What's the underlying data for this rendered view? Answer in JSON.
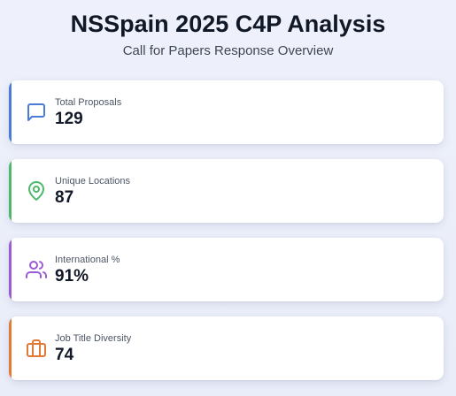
{
  "header": {
    "title": "NSSpain 2025 C4P Analysis",
    "subtitle": "Call for Papers Response Overview"
  },
  "cards": [
    {
      "label": "Total Proposals",
      "value": "129",
      "icon": "message-square-icon",
      "color": "#4a7bd8"
    },
    {
      "label": "Unique Locations",
      "value": "87",
      "icon": "map-pin-icon",
      "color": "#4cb86a"
    },
    {
      "label": "International %",
      "value": "91%",
      "icon": "users-icon",
      "color": "#9a5bd6"
    },
    {
      "label": "Job Title Diversity",
      "value": "74",
      "icon": "briefcase-icon",
      "color": "#e07a34"
    }
  ]
}
